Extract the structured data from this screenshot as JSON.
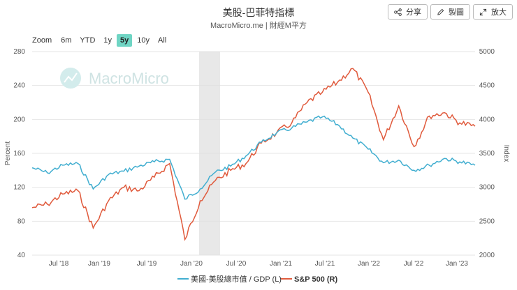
{
  "header": {
    "title": "美股-巴菲特指標",
    "subtitle": "MacroMicro.me | 財經M平方"
  },
  "toolbar": {
    "share_label": "分享",
    "chart_label": "製圖",
    "zoom_label": "放大"
  },
  "zoom": {
    "label": "Zoom",
    "options": [
      "6m",
      "YTD",
      "1y",
      "5y",
      "10y",
      "All"
    ],
    "selected": "5y"
  },
  "watermark": "MacroMicro",
  "colors": {
    "buffett": "#41aed0",
    "sp500": "#e05a3c",
    "shade": "#dedede",
    "grid": "#e6e6e6"
  },
  "chart_data": {
    "type": "line",
    "title": "美股-巴菲特指標",
    "x": [
      "May '18",
      "Jul '18",
      "Oct '18",
      "Dec '18",
      "Jan '19",
      "Mar '19",
      "Jul '19",
      "Sep '19",
      "Dec '19",
      "Feb '20",
      "Mar '20",
      "Apr '20",
      "Jun '20",
      "Jul '20",
      "Sep '20",
      "Nov '20",
      "Jan '21",
      "Mar '21",
      "Jun '21",
      "Aug '21",
      "Oct '21",
      "Jan '22",
      "Mar '22",
      "Jun '22",
      "Aug '22",
      "Oct '22",
      "Jan '23",
      "Feb '23",
      "Mar '23",
      "Apr '23"
    ],
    "x_ticks": [
      "Jul '18",
      "Jan '19",
      "Jul '19",
      "Jan '20",
      "Jul '20",
      "Jan '21",
      "Jul '21",
      "Jan '22",
      "Jul '22",
      "Jan '23"
    ],
    "ylabel_left": "Percent",
    "ylabel_right": "Index",
    "ylim_left": [
      40,
      280
    ],
    "ylim_right": [
      2000,
      5000
    ],
    "yticks_left": [
      "40",
      "80",
      "120",
      "160",
      "200",
      "240",
      "280"
    ],
    "yticks_right": [
      "2000",
      "2500",
      "3000",
      "3500",
      "4000",
      "4500",
      "5000"
    ],
    "recession_shade": [
      "Feb '20",
      "Apr '20"
    ],
    "series": [
      {
        "name": "美國-美股總市值 / GDP (L)",
        "axis": "left",
        "values": [
          143,
          137,
          146,
          148,
          118,
          135,
          139,
          145,
          150,
          153,
          106,
          118,
          138,
          145,
          157,
          173,
          184,
          190,
          197,
          203,
          194,
          178,
          165,
          149,
          152,
          140,
          146,
          154,
          150,
          146
        ]
      },
      {
        "name": "S&P 500 (R)",
        "axis": "right",
        "values": [
          2700,
          2750,
          2900,
          2950,
          2400,
          2800,
          3000,
          2950,
          3150,
          3350,
          2230,
          2800,
          3100,
          3250,
          3350,
          3650,
          3800,
          3950,
          4250,
          4400,
          4550,
          4750,
          4400,
          3700,
          4200,
          3600,
          4050,
          4100,
          3950,
          3900
        ]
      }
    ]
  }
}
